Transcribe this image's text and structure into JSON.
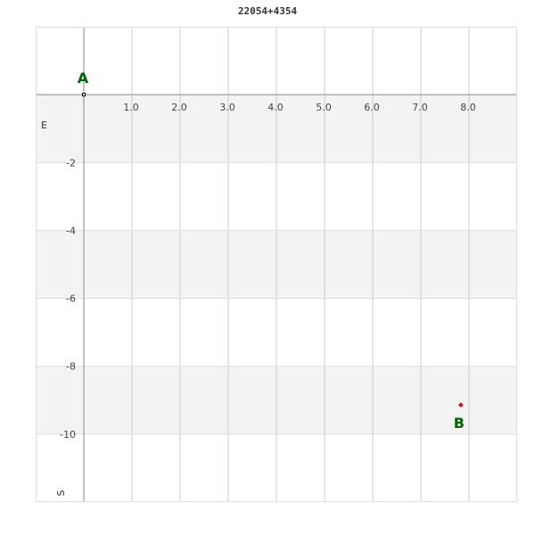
{
  "chart_data": {
    "type": "scatter",
    "title": "22054+4354",
    "xlim": [
      -1,
      9
    ],
    "ylim": [
      -12,
      2
    ],
    "x_ticks": [
      "1.0",
      "2.0",
      "3.0",
      "4.0",
      "5.0",
      "6.0",
      "7.0",
      "8.0"
    ],
    "y_ticks": [
      "-2",
      "-4",
      "-6",
      "-8",
      "-10"
    ],
    "grid": true,
    "direction_labels": {
      "east": "E",
      "south": "S"
    },
    "points": [
      {
        "label": "A",
        "x": 0,
        "y": 0,
        "color": "#000000"
      },
      {
        "label": "B",
        "x": 7.83,
        "y": -9.14,
        "color": "#ff0000"
      }
    ],
    "label_color": "#006400",
    "band_color": "#f3f3f3"
  }
}
